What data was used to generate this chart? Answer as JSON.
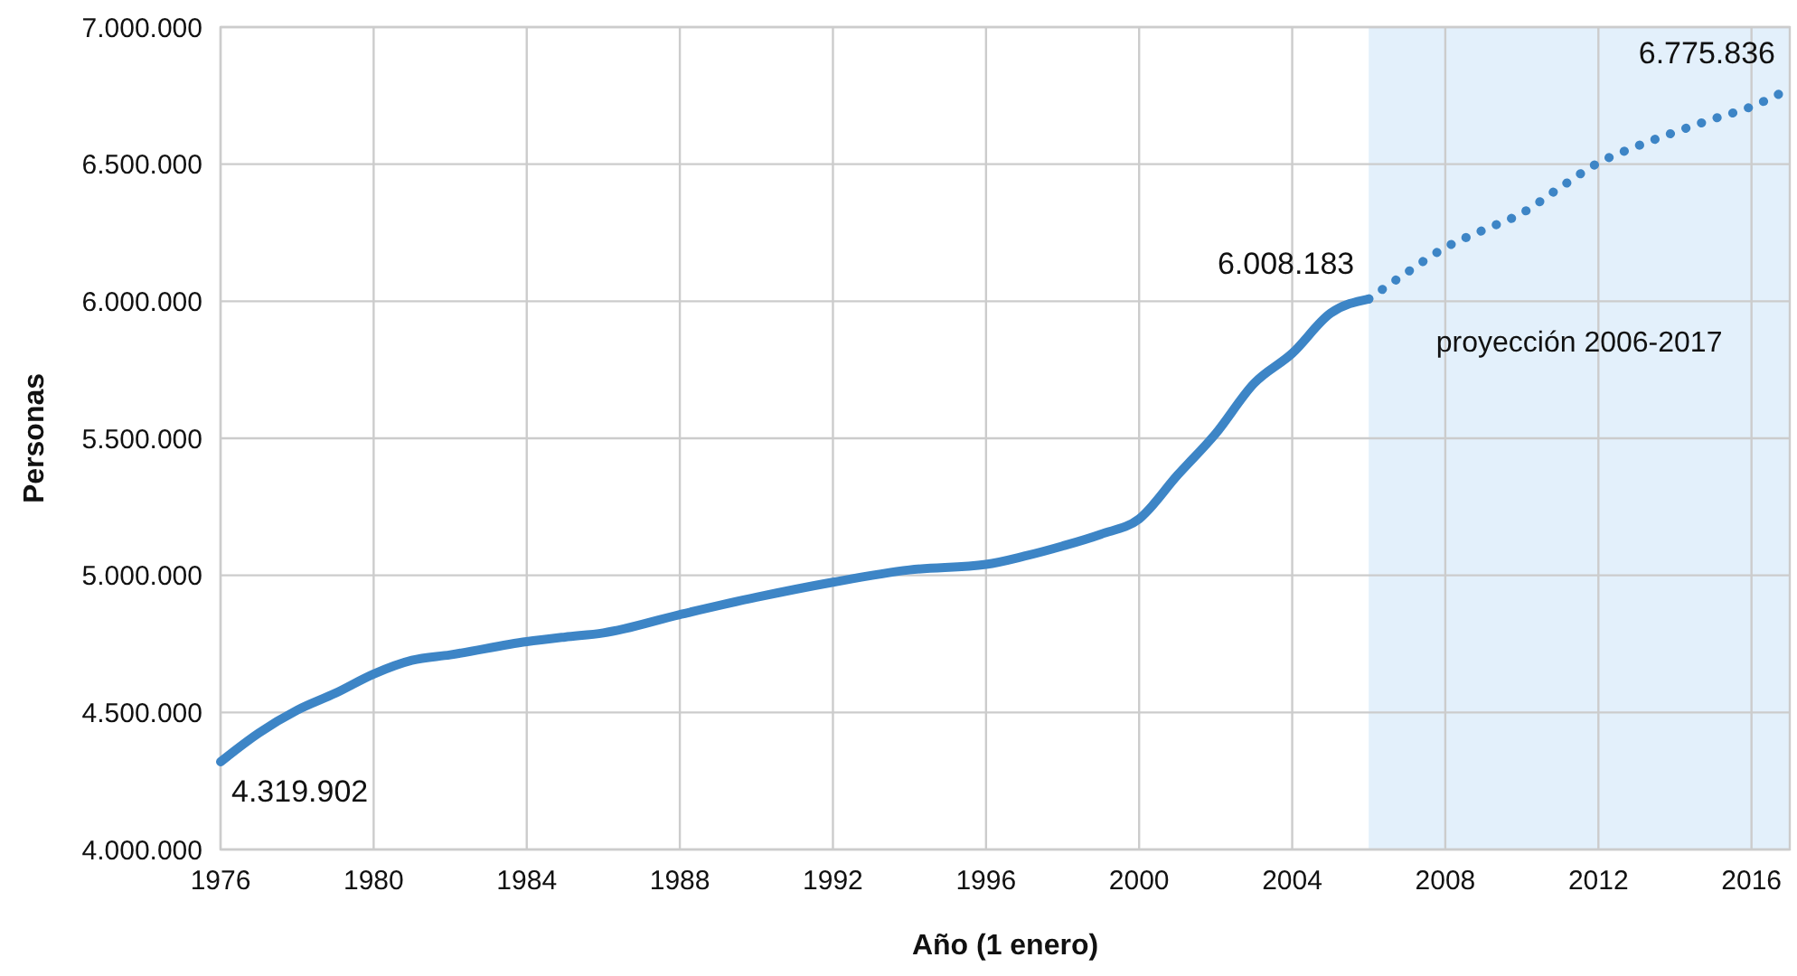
{
  "chart_data": {
    "type": "line",
    "xlabel": "Año (1 enero)",
    "ylabel": "Personas",
    "xlim": [
      1976,
      2017
    ],
    "xticks": [
      1976,
      1980,
      1984,
      1988,
      1992,
      1996,
      2000,
      2004,
      2008,
      2012,
      2016
    ],
    "ylim": [
      4000000,
      7000000
    ],
    "yticks": [
      {
        "value": 4000000,
        "label": "4.000.000"
      },
      {
        "value": 4500000,
        "label": "4.500.000"
      },
      {
        "value": 5000000,
        "label": "5.000.000"
      },
      {
        "value": 5500000,
        "label": "5.500.000"
      },
      {
        "value": 6000000,
        "label": "6.000.000"
      },
      {
        "value": 6500000,
        "label": "6.500.000"
      },
      {
        "value": 7000000,
        "label": "7.000.000"
      }
    ],
    "grid": true,
    "marker": "none",
    "series": [
      {
        "color": "#3d85c6",
        "line_style": "solid",
        "x": [
          1976,
          1977,
          1978,
          1979,
          1980,
          1981,
          1982,
          1984,
          1985,
          1986,
          1988,
          1990,
          1992,
          1994,
          1996,
          1997,
          1998,
          1999,
          2000,
          2001,
          2002,
          2003,
          2004,
          2005,
          2006
        ],
        "values": [
          4319902,
          4425000,
          4508000,
          4570000,
          4640000,
          4690000,
          4710000,
          4758000,
          4775000,
          4790000,
          4857000,
          4920000,
          4975000,
          5020000,
          5040000,
          5070000,
          5107000,
          5150000,
          5206000,
          5365000,
          5517000,
          5700000,
          5810000,
          5956000,
          6008183
        ]
      },
      {
        "color": "#3d85c6",
        "line_style": "dotted",
        "x": [
          2006,
          2007,
          2008,
          2009,
          2010,
          2011,
          2012,
          2013,
          2014,
          2015,
          2016,
          2017
        ],
        "values": [
          6008183,
          6105000,
          6196000,
          6260000,
          6321000,
          6415000,
          6505000,
          6565000,
          6617000,
          6665000,
          6710000,
          6775836
        ]
      }
    ],
    "bands": [
      {
        "axis": "x",
        "from": 2006,
        "to": 2017,
        "label": "proyección 2006-2017",
        "color": "#e3f0fb"
      }
    ],
    "annotations": [
      {
        "text": "4.319.902",
        "x": 1976,
        "y": 4319902
      },
      {
        "text": "6.008.183",
        "x": 2006,
        "y": 6008183
      },
      {
        "text": "6.775.836",
        "x": 2017,
        "y": 6775836
      }
    ]
  }
}
